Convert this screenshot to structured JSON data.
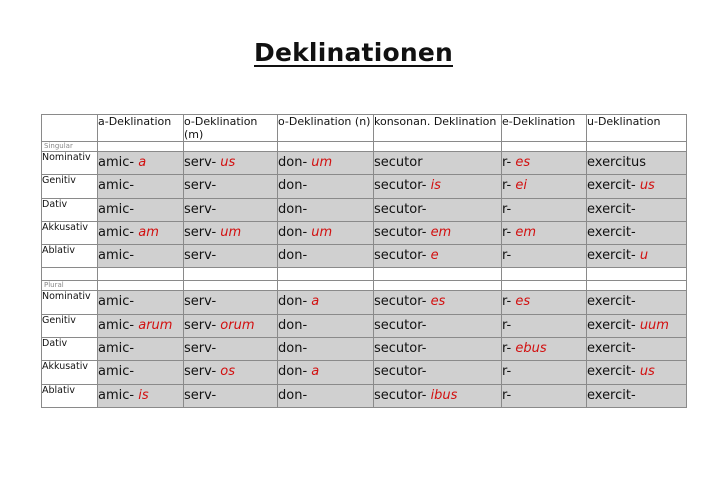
{
  "title": "Deklinationen",
  "table": {
    "headers": [
      "",
      "a-Deklination",
      "o-Deklination (m)",
      "o-Deklination (n)",
      "konsonan. Deklination",
      "e-Deklination",
      "u-Deklination"
    ],
    "sections": [
      {
        "label": "Singular",
        "rows": [
          {
            "case": "Nominativ",
            "cells": [
              [
                "amic-",
                "a"
              ],
              [
                "serv-",
                "us"
              ],
              [
                "don-",
                "um"
              ],
              [
                "secutor",
                ""
              ],
              [
                "r-",
                "es"
              ],
              [
                "exercitus",
                ""
              ]
            ]
          },
          {
            "case": "Genitiv",
            "cells": [
              [
                "amic-",
                ""
              ],
              [
                "serv-",
                ""
              ],
              [
                "don-",
                ""
              ],
              [
                "secutor-",
                "is"
              ],
              [
                "r-",
                "ei"
              ],
              [
                "exercit-",
                "us"
              ]
            ]
          },
          {
            "case": "Dativ",
            "cells": [
              [
                "amic-",
                ""
              ],
              [
                "serv-",
                ""
              ],
              [
                "don-",
                ""
              ],
              [
                "secutor-",
                ""
              ],
              [
                "r-",
                ""
              ],
              [
                "exercit-",
                ""
              ]
            ]
          },
          {
            "case": "Akkusativ",
            "cells": [
              [
                "amic-",
                "am"
              ],
              [
                "serv-",
                "um"
              ],
              [
                "don-",
                "um"
              ],
              [
                "secutor-",
                "em"
              ],
              [
                "r-",
                "em"
              ],
              [
                "exercit-",
                ""
              ]
            ]
          },
          {
            "case": "Ablativ",
            "cells": [
              [
                "amic-",
                ""
              ],
              [
                "serv-",
                ""
              ],
              [
                "don-",
                ""
              ],
              [
                "secutor-",
                "e"
              ],
              [
                "r-",
                ""
              ],
              [
                "exercit-",
                "u"
              ]
            ]
          }
        ]
      },
      {
        "label": "Plural",
        "rows": [
          {
            "case": "Nominativ",
            "cells": [
              [
                "amic-",
                ""
              ],
              [
                "serv-",
                ""
              ],
              [
                "don-",
                "a"
              ],
              [
                "secutor-",
                "es"
              ],
              [
                "r-",
                "es"
              ],
              [
                "exercit-",
                ""
              ]
            ]
          },
          {
            "case": "Genitiv",
            "cells": [
              [
                "amic-",
                "arum"
              ],
              [
                "serv-",
                "orum"
              ],
              [
                "don-",
                ""
              ],
              [
                "secutor-",
                ""
              ],
              [
                "r-",
                ""
              ],
              [
                "exercit-",
                "uum"
              ]
            ]
          },
          {
            "case": "Dativ",
            "cells": [
              [
                "amic-",
                ""
              ],
              [
                "serv-",
                ""
              ],
              [
                "don-",
                ""
              ],
              [
                "secutor-",
                ""
              ],
              [
                "r-",
                "ebus"
              ],
              [
                "exercit-",
                ""
              ]
            ]
          },
          {
            "case": "Akkusativ",
            "cells": [
              [
                "amic-",
                ""
              ],
              [
                "serv-",
                "os"
              ],
              [
                "don-",
                "a"
              ],
              [
                "secutor-",
                ""
              ],
              [
                "r-",
                ""
              ],
              [
                "exercit-",
                "us"
              ]
            ]
          },
          {
            "case": "Ablativ",
            "cells": [
              [
                "amic-",
                "is"
              ],
              [
                "serv-",
                ""
              ],
              [
                "don-",
                ""
              ],
              [
                "secutor-",
                "ibus"
              ],
              [
                "r-",
                ""
              ],
              [
                "exercit-",
                ""
              ]
            ]
          }
        ]
      }
    ]
  },
  "colors": {
    "ending": "#d21010",
    "cell_bg": "#d0d0d0",
    "border": "#8a8a8a"
  }
}
